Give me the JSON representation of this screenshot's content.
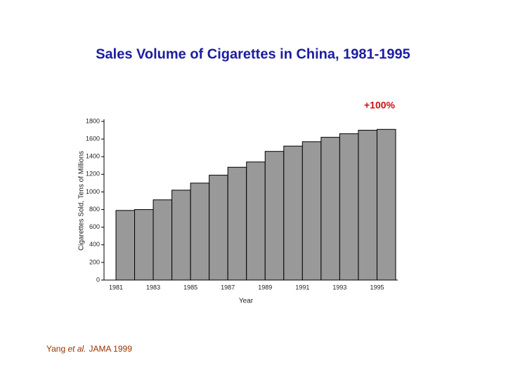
{
  "chart_data": {
    "type": "bar",
    "title": "Sales Volume of Cigarettes in China, 1981-1995",
    "annotation": "+100%",
    "y_label": "Cigarettes Sold, Tens of Millions",
    "x_label": "Year",
    "categories": [
      "1981",
      null,
      "1983",
      null,
      "1985",
      null,
      "1987",
      null,
      "1989",
      null,
      "1991",
      null,
      "1993",
      null,
      "1995"
    ],
    "values": [
      790,
      800,
      910,
      1020,
      1100,
      1190,
      1280,
      1340,
      1460,
      1520,
      1570,
      1620,
      1660,
      1700,
      1710
    ],
    "color": "#999999",
    "ylim": [
      0,
      1800
    ],
    "yticks": [
      0,
      200,
      400,
      600,
      800,
      1000,
      1200,
      1400,
      1600,
      1800
    ],
    "source": {
      "author": "Yang",
      "etal": "et al.",
      "rest": "JAMA 1999"
    }
  }
}
